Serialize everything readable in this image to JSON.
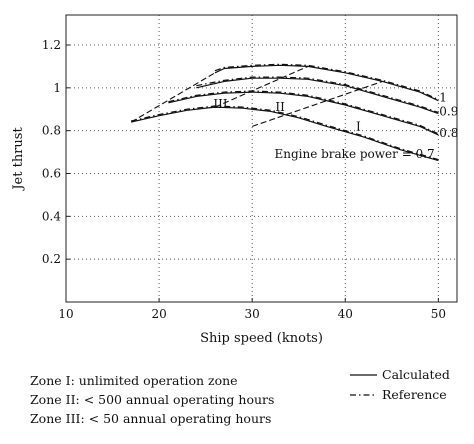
{
  "chart_data": {
    "type": "line",
    "xlabel": "Ship speed (knots)",
    "ylabel": "Jet thrust",
    "xlim": [
      10,
      52
    ],
    "ylim": [
      0,
      1.34
    ],
    "xticks": [
      10,
      20,
      30,
      40,
      50
    ],
    "yticks": [
      0.2,
      0.4,
      0.6,
      0.8,
      1,
      1.2
    ],
    "grid": true,
    "series": [
      {
        "name": "Calculated",
        "style": "solid",
        "power": "1",
        "x": [
          26,
          27,
          30,
          33,
          36,
          40,
          44,
          48,
          50
        ],
        "y": [
          1.07,
          1.09,
          1.1,
          1.105,
          1.1,
          1.07,
          1.03,
          0.98,
          0.94
        ]
      },
      {
        "name": "Calculated",
        "style": "solid",
        "power": "0.9",
        "x": [
          24,
          27,
          30,
          33,
          36,
          40,
          44,
          48,
          50
        ],
        "y": [
          1.0,
          1.03,
          1.045,
          1.045,
          1.04,
          1.01,
          0.96,
          0.91,
          0.88
        ]
      },
      {
        "name": "Calculated",
        "style": "solid",
        "power": "0.8",
        "x": [
          21,
          24,
          27,
          30,
          33,
          36,
          40,
          44,
          48,
          50
        ],
        "y": [
          0.93,
          0.96,
          0.975,
          0.98,
          0.975,
          0.96,
          0.92,
          0.87,
          0.82,
          0.78
        ]
      },
      {
        "name": "Calculated",
        "style": "solid",
        "power": "0.7",
        "x": [
          17,
          20,
          23,
          26,
          29,
          32,
          35,
          38,
          42,
          46,
          50
        ],
        "y": [
          0.84,
          0.87,
          0.895,
          0.91,
          0.905,
          0.89,
          0.86,
          0.82,
          0.77,
          0.71,
          0.66
        ]
      },
      {
        "name": "Reference",
        "style": "dashdot",
        "power": "1",
        "x": [
          26,
          27,
          30,
          33,
          36,
          40,
          44,
          48,
          50
        ],
        "y": [
          1.08,
          1.095,
          1.105,
          1.11,
          1.105,
          1.075,
          1.035,
          0.985,
          0.945
        ]
      },
      {
        "name": "Reference",
        "style": "dashdot",
        "power": "0.9",
        "x": [
          24,
          27,
          30,
          33,
          36,
          40,
          44,
          48,
          50
        ],
        "y": [
          1.01,
          1.035,
          1.05,
          1.05,
          1.045,
          1.015,
          0.965,
          0.915,
          0.885
        ]
      },
      {
        "name": "Reference",
        "style": "dashdot",
        "power": "0.8",
        "x": [
          21,
          24,
          27,
          30,
          33,
          36,
          40,
          44,
          48,
          50
        ],
        "y": [
          0.935,
          0.965,
          0.98,
          0.985,
          0.98,
          0.965,
          0.925,
          0.875,
          0.825,
          0.785
        ]
      },
      {
        "name": "Reference",
        "style": "dashdot",
        "power": "0.7",
        "x": [
          17,
          20,
          23,
          26,
          29,
          32,
          35,
          38,
          42,
          46,
          50
        ],
        "y": [
          0.845,
          0.875,
          0.9,
          0.915,
          0.91,
          0.895,
          0.865,
          0.825,
          0.775,
          0.715,
          0.665
        ]
      }
    ],
    "zone_boundaries": [
      {
        "x": [
          17,
          26
        ],
        "y": [
          0.84,
          1.07
        ]
      },
      {
        "x": [
          26,
          36
        ],
        "y": [
          0.91,
          1.1
        ]
      },
      {
        "x": [
          30,
          44
        ],
        "y": [
          0.82,
          1.03
        ]
      }
    ],
    "annotations": [
      {
        "text": "1",
        "x": 50.1,
        "y": 0.955
      },
      {
        "text": "0.9",
        "x": 50.1,
        "y": 0.89
      },
      {
        "text": "0.8",
        "x": 50.1,
        "y": 0.79
      },
      {
        "text": "Engine brake power = 0.7",
        "x": 49.6,
        "y": 0.69
      },
      {
        "text": "III",
        "x": 26.6,
        "y": 0.925
      },
      {
        "text": "II",
        "x": 33,
        "y": 0.91
      },
      {
        "text": "I",
        "x": 41.4,
        "y": 0.82
      }
    ]
  },
  "legend": [
    {
      "label": "Calculated",
      "style": "solid"
    },
    {
      "label": "Reference",
      "style": "dashdot"
    }
  ],
  "zones": [
    "Zone I: unlimited operation zone",
    "Zone II: < 500 annual operating hours",
    "Zone III: < 50 annual operating hours"
  ]
}
